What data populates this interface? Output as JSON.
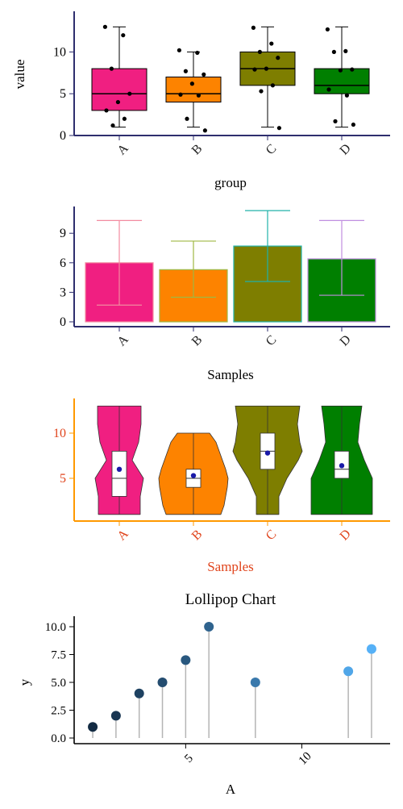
{
  "chart_data": [
    {
      "type": "box",
      "xlabel": "group",
      "ylabel": "value",
      "ylim": [
        0,
        14
      ],
      "yticks": [
        0,
        5,
        10
      ],
      "categories": [
        "A",
        "B",
        "C",
        "D"
      ],
      "colors": [
        "#f01f81",
        "#fd8300",
        "#7e7e00",
        "#007f00"
      ],
      "boxes": [
        {
          "q1": 3,
          "median": 5,
          "q3": 8,
          "low": 1,
          "high": 13
        },
        {
          "q1": 4,
          "median": 5,
          "q3": 7,
          "low": 1,
          "high": 10
        },
        {
          "q1": 6,
          "median": 8,
          "q3": 10,
          "low": 1,
          "high": 13
        },
        {
          "q1": 5,
          "median": 6,
          "q3": 8,
          "low": 1,
          "high": 13
        }
      ],
      "points": [
        [
          13,
          12,
          8,
          5,
          4,
          3,
          2,
          1.2
        ],
        [
          10.2,
          9.9,
          7.7,
          7.3,
          6.2,
          4.9,
          4.8,
          2,
          0.6
        ],
        [
          12.9,
          11,
          10,
          9.3,
          8,
          7.9,
          6,
          5.3,
          0.9
        ],
        [
          12.7,
          10.1,
          10,
          7.9,
          7.8,
          5.5,
          4.8,
          1.7,
          1.3
        ]
      ]
    },
    {
      "type": "bar",
      "xlabel": "Samples",
      "ylabel": "",
      "ylim": [
        0,
        11.5
      ],
      "yticks": [
        0,
        3,
        6,
        9
      ],
      "categories": [
        "A",
        "B",
        "C",
        "D"
      ],
      "values": [
        6.0,
        5.3,
        7.7,
        6.4
      ],
      "err_low": [
        1.7,
        2.5,
        4.1,
        2.7
      ],
      "err_high": [
        10.3,
        8.2,
        11.3,
        10.3
      ],
      "colors": [
        "#f01f81",
        "#fd8300",
        "#7e7e00",
        "#007f00"
      ],
      "error_colors": [
        "#f28aa0",
        "#9fb843",
        "#20b2aa",
        "#c08ee0"
      ]
    },
    {
      "type": "violin",
      "xlabel": "Samples",
      "ylabel": "",
      "ylim": [
        0,
        13
      ],
      "yticks": [
        5,
        10
      ],
      "categories": [
        "A",
        "B",
        "C",
        "D"
      ],
      "colors": [
        "#f01f81",
        "#fd8300",
        "#7e7e00",
        "#007f00"
      ],
      "axis_color": "#ff9900",
      "label_color": "#e0441c",
      "boxes": [
        {
          "q1": 3,
          "median": 5,
          "q3": 8,
          "mean": 6
        },
        {
          "q1": 4,
          "median": 5,
          "q3": 6,
          "mean": 5.3
        },
        {
          "q1": 6,
          "median": 8,
          "q3": 10,
          "mean": 7.8
        },
        {
          "q1": 5,
          "median": 6,
          "q3": 8,
          "mean": 6.4
        }
      ],
      "range": [
        1,
        13
      ]
    },
    {
      "type": "lollipop",
      "title": "Lollipop Chart",
      "xlabel": "A",
      "ylabel": "y",
      "xlim": [
        0.2,
        13.8
      ],
      "ylim": [
        -0.3,
        10.3
      ],
      "xticks": [
        5,
        10
      ],
      "yticks": [
        0.0,
        2.5,
        5.0,
        7.5,
        10.0
      ],
      "ytick_labels": [
        "0.0",
        "2.5",
        "5.0",
        "7.5",
        "10.0"
      ],
      "x": [
        1,
        2,
        3,
        4,
        5,
        6,
        8,
        12,
        13
      ],
      "y": [
        1,
        2,
        4,
        5,
        7,
        10,
        5,
        6,
        8
      ],
      "color_low": "#132b43",
      "color_high": "#56b1f7"
    }
  ]
}
